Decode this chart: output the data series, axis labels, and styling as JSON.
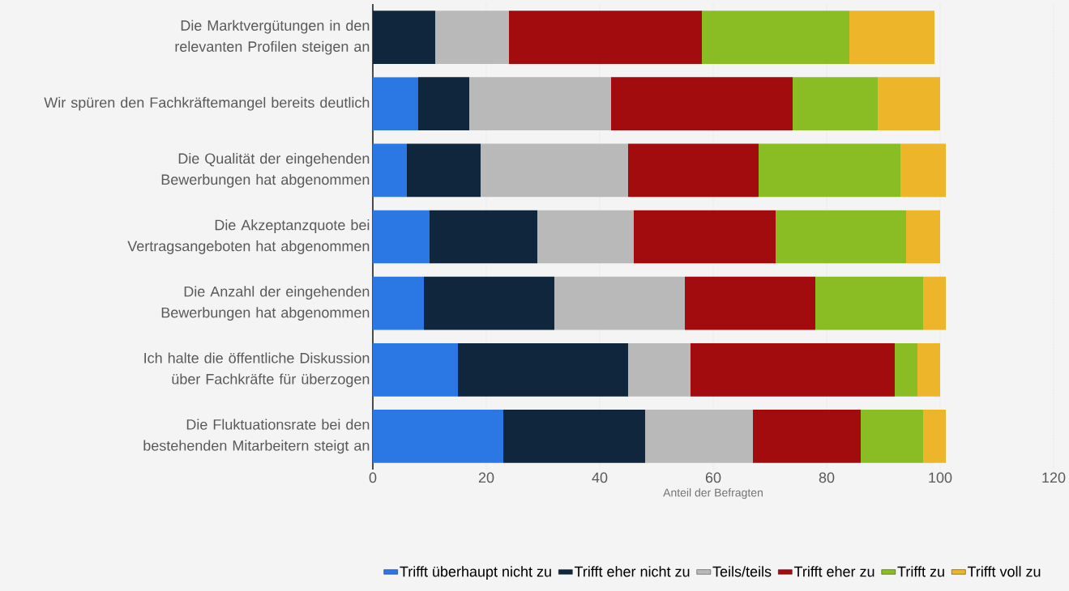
{
  "chart_data": {
    "type": "bar",
    "orientation": "horizontal",
    "stacked": true,
    "xlabel": "Anteil der Befragten",
    "categories": [
      "Die Marktvergütungen in den relevanten Profilen steigen an",
      "Wir spüren den Fachkräftemangel bereits deutlich",
      "Die Qualität der eingehenden Bewerbungen hat abgenommen",
      "Die Akzeptanzquote bei Vertragsangeboten hat abgenommen",
      "Die Anzahl der eingehenden Bewerbungen hat abgenommen",
      "Ich halte die öffentliche Diskussion über Fachkräfte für überzogen",
      "Die Fluktuationsrate bei den bestehenden Mitarbeitern steigt an"
    ],
    "series": [
      {
        "name": "Trifft überhaupt nicht zu",
        "color": "#2b78e4",
        "values": [
          0,
          8,
          6,
          10,
          9,
          15,
          23
        ]
      },
      {
        "name": "Trifft eher nicht zu",
        "color": "#0f263d",
        "values": [
          11,
          9,
          13,
          19,
          23,
          30,
          25
        ]
      },
      {
        "name": "Teils/teils",
        "color": "#b9b9b9",
        "values": [
          13,
          25,
          26,
          17,
          23,
          11,
          19
        ]
      },
      {
        "name": "Trifft eher zu",
        "color": "#a30c0e",
        "values": [
          34,
          32,
          23,
          25,
          23,
          36,
          19
        ]
      },
      {
        "name": "Trifft zu",
        "color": "#8abd24",
        "values": [
          26,
          15,
          25,
          23,
          19,
          4,
          11
        ]
      },
      {
        "name": "Trifft voll zu",
        "color": "#ecb52a",
        "values": [
          15,
          11,
          8,
          6,
          4,
          4,
          4
        ]
      }
    ],
    "xlim": [
      0,
      120
    ],
    "xticks": [
      0,
      20,
      40,
      60,
      80,
      100,
      120
    ],
    "grid": "x",
    "legend": "bottom"
  }
}
